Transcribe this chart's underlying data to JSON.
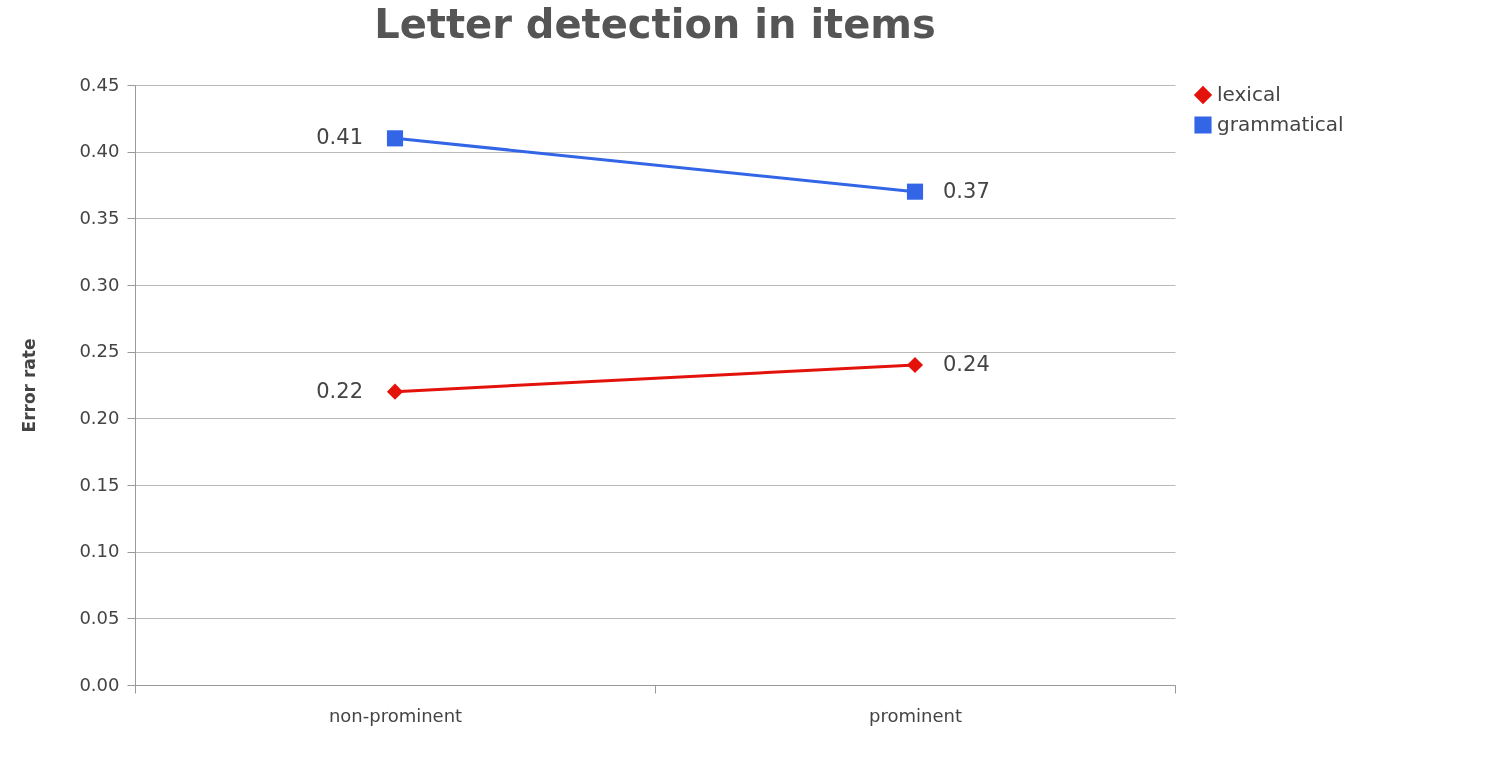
{
  "chart_data": {
    "type": "line",
    "title": "Letter detection in items",
    "ylabel": "Error rate",
    "categories": [
      "non-prominent",
      "prominent"
    ],
    "series": [
      {
        "name": "lexical",
        "color": "#e3120b",
        "marker": "diamond",
        "values": [
          0.22,
          0.24
        ]
      },
      {
        "name": "grammatical",
        "color": "#3366e6",
        "marker": "square",
        "values": [
          0.41,
          0.37
        ]
      }
    ],
    "ylim": [
      0,
      0.45
    ],
    "yticks": [
      {
        "value": 0,
        "label": "0.00"
      },
      {
        "value": 0.05,
        "label": "0.05"
      },
      {
        "value": 0.1,
        "label": "0.10"
      },
      {
        "value": 0.15,
        "label": "0.15"
      },
      {
        "value": 0.2,
        "label": "0.20"
      },
      {
        "value": 0.25,
        "label": "0.25"
      },
      {
        "value": 0.3,
        "label": "0.30"
      },
      {
        "value": 0.35,
        "label": "0.35"
      },
      {
        "value": 0.4,
        "label": "0.40"
      },
      {
        "value": 0.45,
        "label": "0.45"
      }
    ],
    "grid": "y",
    "legend": "right",
    "data_labels": true,
    "line_style": "solid"
  }
}
